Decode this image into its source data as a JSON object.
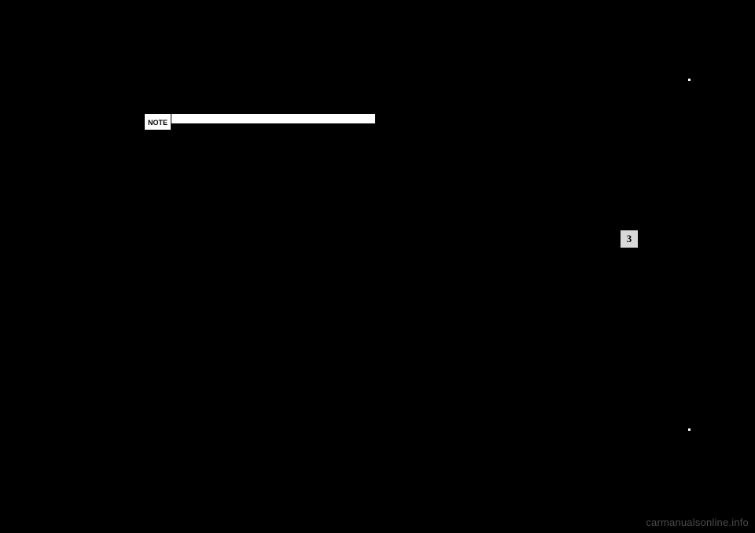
{
  "note": {
    "label": "NOTE"
  },
  "page_tab": {
    "number": "3"
  },
  "watermark": {
    "text": "carmanualsonline.info"
  }
}
